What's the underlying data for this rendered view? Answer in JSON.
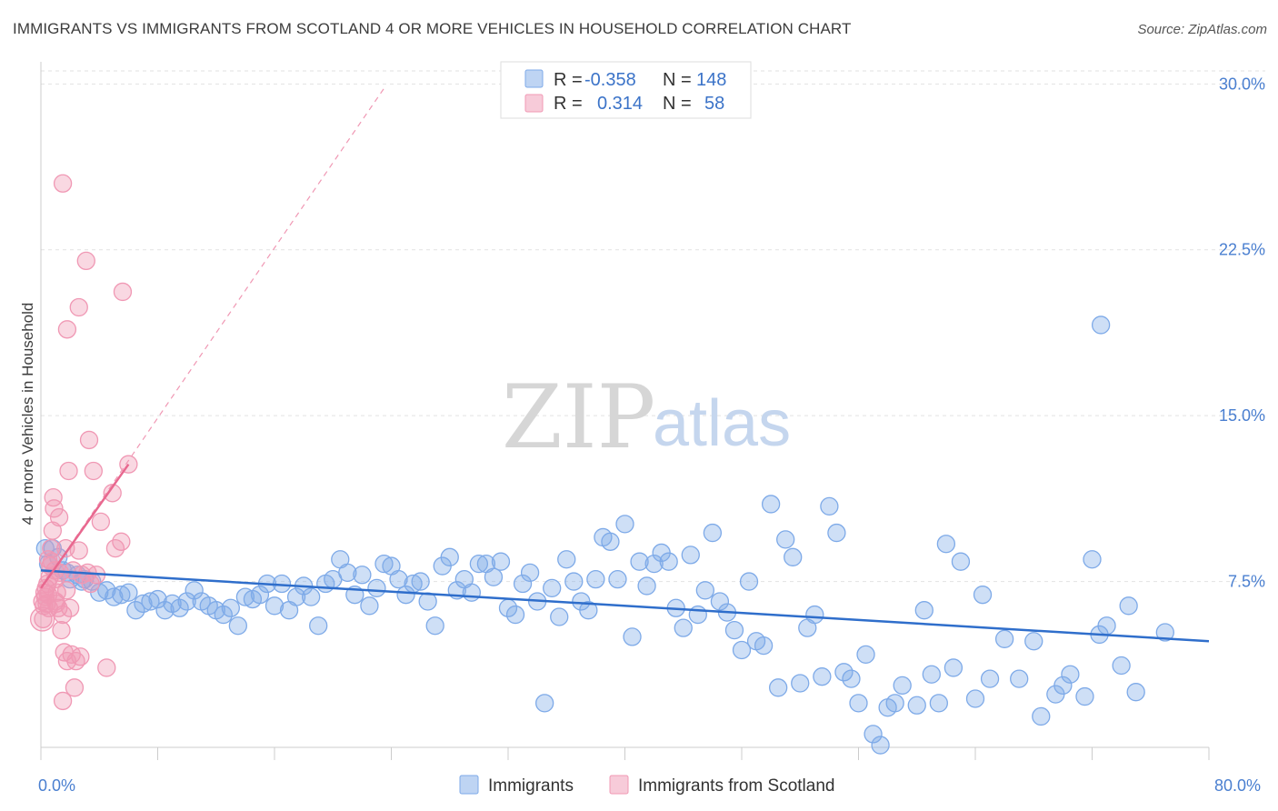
{
  "header": {
    "title": "IMMIGRANTS VS IMMIGRANTS FROM SCOTLAND 4 OR MORE VEHICLES IN HOUSEHOLD CORRELATION CHART",
    "source": "Source: ZipAtlas.com"
  },
  "watermark": {
    "zip": "ZIP",
    "atlas": "atlas"
  },
  "legend": {
    "rows": [
      {
        "r_label": "R =",
        "r_value": "-0.358",
        "n_label": "N =",
        "n_value": "148",
        "color": "#7eaae8"
      },
      {
        "r_label": "R =",
        "r_value": "0.314",
        "n_label": "N =",
        "n_value": "58",
        "color": "#f098b4"
      }
    ]
  },
  "bottom_legend": {
    "items": [
      {
        "label": "Immigrants",
        "color": "#7eaae8"
      },
      {
        "label": "Immigrants from Scotland",
        "color": "#f098b4"
      }
    ]
  },
  "chart_data": {
    "type": "scatter",
    "title": "IMMIGRANTS VS IMMIGRANTS FROM SCOTLAND 4 OR MORE VEHICLES IN HOUSEHOLD CORRELATION CHART",
    "xlabel": "",
    "ylabel": "4 or more Vehicles in Household",
    "xlim": [
      0,
      80
    ],
    "ylim": [
      0,
      31
    ],
    "x_tick_labels": [
      "0.0%",
      "80.0%"
    ],
    "y_ticks": [
      7.5,
      15.0,
      22.5,
      30.0
    ],
    "y_tick_labels": [
      "7.5%",
      "15.0%",
      "22.5%",
      "30.0%"
    ],
    "grid": true,
    "legend_position": "top-center",
    "series": [
      {
        "name": "Immigrants",
        "color": "#7eaae8",
        "trend": {
          "x": [
            0,
            80
          ],
          "y": [
            8.0,
            4.8
          ]
        },
        "points": [
          [
            0.3,
            9.0
          ],
          [
            0.5,
            8.3
          ],
          [
            0.8,
            9.0
          ],
          [
            1.2,
            8.6
          ],
          [
            1.5,
            8.0
          ],
          [
            1.8,
            7.9
          ],
          [
            2.0,
            7.6
          ],
          [
            2.5,
            7.8
          ],
          [
            2.8,
            7.5
          ],
          [
            3.0,
            7.6
          ],
          [
            3.5,
            7.5
          ],
          [
            4.0,
            7.0
          ],
          [
            4.5,
            7.1
          ],
          [
            5.0,
            6.8
          ],
          [
            5.5,
            6.9
          ],
          [
            6.0,
            7.0
          ],
          [
            6.5,
            6.2
          ],
          [
            7.0,
            6.5
          ],
          [
            7.5,
            6.6
          ],
          [
            8.0,
            6.7
          ],
          [
            8.5,
            6.2
          ],
          [
            9.0,
            6.5
          ],
          [
            9.5,
            6.3
          ],
          [
            10.0,
            6.6
          ],
          [
            10.5,
            7.1
          ],
          [
            11.0,
            6.6
          ],
          [
            11.5,
            6.4
          ],
          [
            12.0,
            6.2
          ],
          [
            12.5,
            6.0
          ],
          [
            13.0,
            6.3
          ],
          [
            13.5,
            5.5
          ],
          [
            14.0,
            6.8
          ],
          [
            14.5,
            6.7
          ],
          [
            15.0,
            6.9
          ],
          [
            15.5,
            7.4
          ],
          [
            16.0,
            6.4
          ],
          [
            16.5,
            7.4
          ],
          [
            17.0,
            6.2
          ],
          [
            17.5,
            6.8
          ],
          [
            18.0,
            7.3
          ],
          [
            18.5,
            6.8
          ],
          [
            19.0,
            5.5
          ],
          [
            19.5,
            7.4
          ],
          [
            20.0,
            7.6
          ],
          [
            20.5,
            8.5
          ],
          [
            21.0,
            7.9
          ],
          [
            21.5,
            6.9
          ],
          [
            22.0,
            7.8
          ],
          [
            22.5,
            6.4
          ],
          [
            23.0,
            7.2
          ],
          [
            23.5,
            8.3
          ],
          [
            24.0,
            8.2
          ],
          [
            24.5,
            7.6
          ],
          [
            25.0,
            6.9
          ],
          [
            25.5,
            7.4
          ],
          [
            26.0,
            7.5
          ],
          [
            26.5,
            6.6
          ],
          [
            27.0,
            5.5
          ],
          [
            27.5,
            8.2
          ],
          [
            28.0,
            8.6
          ],
          [
            28.5,
            7.1
          ],
          [
            29.0,
            7.6
          ],
          [
            29.5,
            7.0
          ],
          [
            30.0,
            8.3
          ],
          [
            30.5,
            8.3
          ],
          [
            31.0,
            7.7
          ],
          [
            31.5,
            8.4
          ],
          [
            32.0,
            6.3
          ],
          [
            32.5,
            6.0
          ],
          [
            33.0,
            7.4
          ],
          [
            33.5,
            7.9
          ],
          [
            34.0,
            6.6
          ],
          [
            34.5,
            2.0
          ],
          [
            35.0,
            7.2
          ],
          [
            35.5,
            5.9
          ],
          [
            36.0,
            8.5
          ],
          [
            36.5,
            7.5
          ],
          [
            37.0,
            6.6
          ],
          [
            37.5,
            6.2
          ],
          [
            38.0,
            7.6
          ],
          [
            38.5,
            9.5
          ],
          [
            39.0,
            9.3
          ],
          [
            39.5,
            7.6
          ],
          [
            40.0,
            10.1
          ],
          [
            40.5,
            5.0
          ],
          [
            41.0,
            8.4
          ],
          [
            41.5,
            7.3
          ],
          [
            42.0,
            8.3
          ],
          [
            42.5,
            8.8
          ],
          [
            43.0,
            8.4
          ],
          [
            43.5,
            6.3
          ],
          [
            44.0,
            5.4
          ],
          [
            44.5,
            8.7
          ],
          [
            45.0,
            6.0
          ],
          [
            45.5,
            7.1
          ],
          [
            46.0,
            9.7
          ],
          [
            46.5,
            6.6
          ],
          [
            47.0,
            6.1
          ],
          [
            47.5,
            5.3
          ],
          [
            48.0,
            4.4
          ],
          [
            48.5,
            7.5
          ],
          [
            49.0,
            4.8
          ],
          [
            49.5,
            4.6
          ],
          [
            50.0,
            11.0
          ],
          [
            50.5,
            2.7
          ],
          [
            51.0,
            9.4
          ],
          [
            51.5,
            8.6
          ],
          [
            52.0,
            2.9
          ],
          [
            52.5,
            5.4
          ],
          [
            53.0,
            6.0
          ],
          [
            53.5,
            3.2
          ],
          [
            54.0,
            10.9
          ],
          [
            54.5,
            9.7
          ],
          [
            55.0,
            3.4
          ],
          [
            55.5,
            3.1
          ],
          [
            56.0,
            2.0
          ],
          [
            56.5,
            4.2
          ],
          [
            57.0,
            0.6
          ],
          [
            57.5,
            0.1
          ],
          [
            58.0,
            1.8
          ],
          [
            58.5,
            2.0
          ],
          [
            59.0,
            2.8
          ],
          [
            60.0,
            1.9
          ],
          [
            60.5,
            6.2
          ],
          [
            61.0,
            3.3
          ],
          [
            62.0,
            9.2
          ],
          [
            62.5,
            3.6
          ],
          [
            63.0,
            8.4
          ],
          [
            64.0,
            2.2
          ],
          [
            64.5,
            6.9
          ],
          [
            65.0,
            3.1
          ],
          [
            66.0,
            4.9
          ],
          [
            67.0,
            3.1
          ],
          [
            68.0,
            4.8
          ],
          [
            68.5,
            1.4
          ],
          [
            69.5,
            2.4
          ],
          [
            70.0,
            2.8
          ],
          [
            70.5,
            3.3
          ],
          [
            71.5,
            2.3
          ],
          [
            72.0,
            8.5
          ],
          [
            72.5,
            5.1
          ],
          [
            73.0,
            5.5
          ],
          [
            74.0,
            3.7
          ],
          [
            74.5,
            6.4
          ],
          [
            75.0,
            2.5
          ],
          [
            72.6,
            19.1
          ],
          [
            77.0,
            5.2
          ],
          [
            61.5,
            2.0
          ]
        ]
      },
      {
        "name": "Immigrants from Scotland",
        "color": "#f098b4",
        "trend": {
          "x": [
            0,
            6
          ],
          "y": [
            7.2,
            12.8
          ],
          "extended": {
            "x": [
              0,
              23.5
            ],
            "y": [
              7.2,
              29.8
            ]
          }
        },
        "points": [
          [
            0.1,
            6.6
          ],
          [
            0.15,
            5.8
          ],
          [
            0.2,
            6.4
          ],
          [
            0.25,
            7.0
          ],
          [
            0.3,
            6.8
          ],
          [
            0.35,
            7.2
          ],
          [
            0.4,
            6.5
          ],
          [
            0.45,
            7.4
          ],
          [
            0.5,
            6.9
          ],
          [
            0.55,
            6.3
          ],
          [
            0.6,
            7.7
          ],
          [
            0.65,
            8.2
          ],
          [
            0.7,
            9.0
          ],
          [
            0.75,
            8.4
          ],
          [
            0.8,
            9.8
          ],
          [
            0.85,
            11.3
          ],
          [
            0.9,
            10.8
          ],
          [
            0.95,
            8.0
          ],
          [
            1.0,
            7.6
          ],
          [
            1.05,
            6.5
          ],
          [
            1.1,
            7.0
          ],
          [
            1.2,
            6.3
          ],
          [
            1.25,
            10.4
          ],
          [
            1.3,
            7.9
          ],
          [
            1.4,
            5.3
          ],
          [
            1.5,
            6.0
          ],
          [
            1.6,
            4.3
          ],
          [
            1.7,
            9.0
          ],
          [
            1.75,
            7.1
          ],
          [
            1.8,
            3.9
          ],
          [
            1.9,
            12.5
          ],
          [
            1.5,
            25.5
          ],
          [
            1.8,
            18.9
          ],
          [
            2.6,
            19.9
          ],
          [
            3.1,
            22.0
          ],
          [
            5.6,
            20.6
          ],
          [
            3.3,
            13.9
          ],
          [
            3.6,
            12.5
          ],
          [
            2.0,
            6.3
          ],
          [
            2.2,
            8.0
          ],
          [
            2.4,
            3.9
          ],
          [
            2.1,
            4.2
          ],
          [
            2.6,
            8.9
          ],
          [
            2.8,
            7.8
          ],
          [
            3.2,
            7.9
          ],
          [
            3.4,
            7.4
          ],
          [
            3.8,
            7.8
          ],
          [
            4.1,
            10.2
          ],
          [
            4.5,
            3.6
          ],
          [
            4.9,
            11.5
          ],
          [
            5.1,
            9.0
          ],
          [
            5.5,
            9.3
          ],
          [
            6.0,
            12.8
          ],
          [
            2.3,
            2.7
          ],
          [
            1.5,
            2.1
          ],
          [
            0.5,
            8.5
          ],
          [
            1.0,
            6.6
          ],
          [
            2.7,
            4.1
          ]
        ]
      }
    ]
  }
}
